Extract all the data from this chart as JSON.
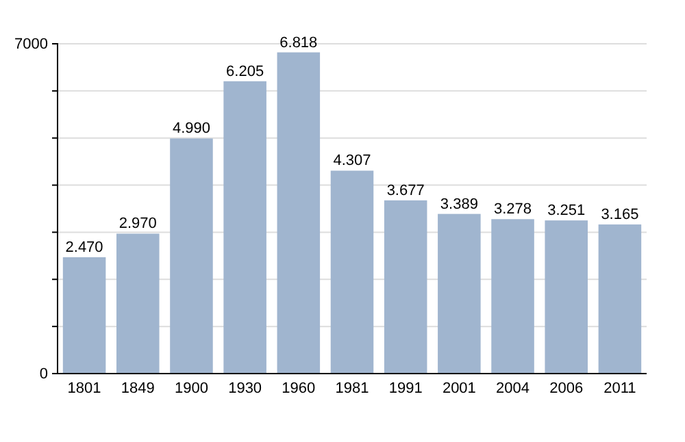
{
  "chart_data": {
    "type": "bar",
    "categories": [
      "1801",
      "1849",
      "1900",
      "1930",
      "1960",
      "1981",
      "1991",
      "2001",
      "2004",
      "2006",
      "2011"
    ],
    "values": [
      2470,
      2970,
      4990,
      6205,
      6818,
      4307,
      3677,
      3389,
      3278,
      3251,
      3165
    ],
    "value_labels": [
      "2.470",
      "2.970",
      "4.990",
      "6.205",
      "6.818",
      "4.307",
      "3.677",
      "3.389",
      "3.278",
      "3.251",
      "3.165"
    ],
    "color": "#a0b5cf",
    "ylim": [
      0,
      7000
    ],
    "yticks": [
      0,
      {
        "value": 1000,
        "label": null
      },
      {
        "value": 2000,
        "label": null
      },
      {
        "value": 3000,
        "label": null
      },
      {
        "value": 4000,
        "label": null
      },
      {
        "value": 5000,
        "label": null
      },
      {
        "value": 6000,
        "label": null
      },
      7000
    ],
    "grid": "y"
  }
}
